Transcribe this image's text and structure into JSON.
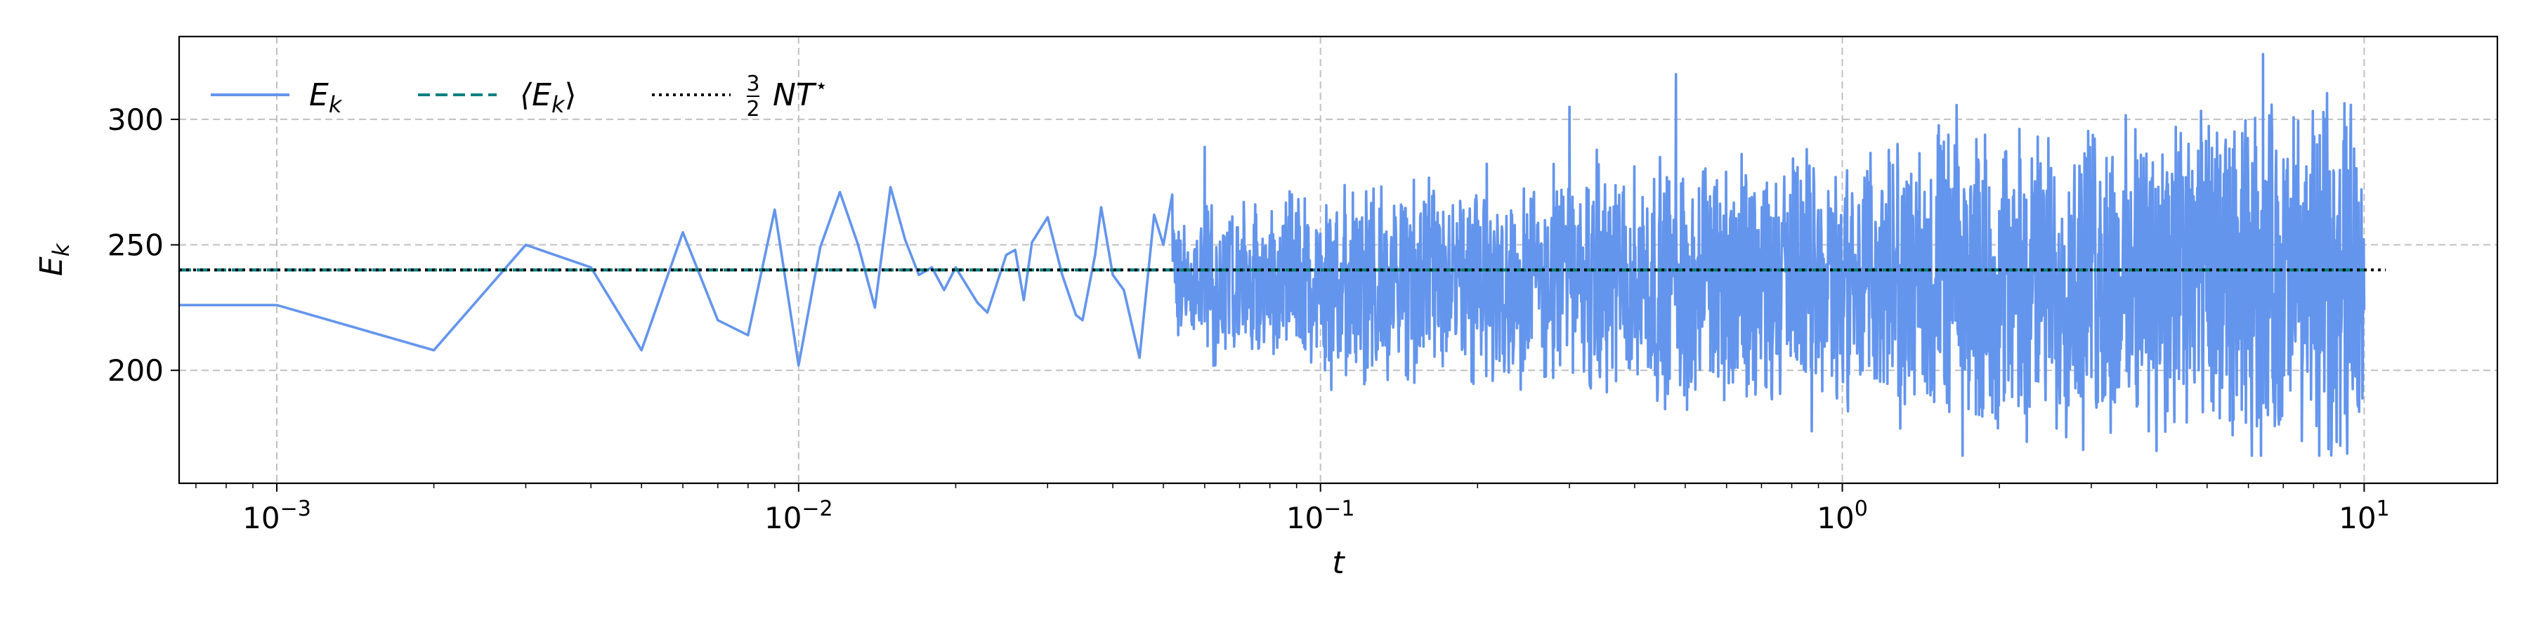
{
  "chart_data": {
    "type": "line",
    "xscale": "log",
    "xlim": [
      0.00065,
      18
    ],
    "ylim": [
      155,
      333
    ],
    "xlabel": "t",
    "ylabel": "E_k",
    "x_ticks": [
      0.001,
      0.01,
      0.1,
      1,
      10
    ],
    "x_tick_labels": [
      {
        "base": "10",
        "exp": "−3"
      },
      {
        "base": "10",
        "exp": "−2"
      },
      {
        "base": "10",
        "exp": "−1"
      },
      {
        "base": "10",
        "exp": "0"
      },
      {
        "base": "10",
        "exp": "1"
      }
    ],
    "y_ticks": [
      200,
      250,
      300
    ],
    "y_tick_labels": [
      "200",
      "250",
      "300"
    ],
    "grid": true,
    "legend_position": "top-left",
    "legend": [
      {
        "label": "E",
        "sub": "k",
        "style": "solid",
        "color": "#6495ED"
      },
      {
        "label": "⟨E",
        "sub": "k",
        "tail": "⟩",
        "style": "dashed",
        "color": "#008080"
      },
      {
        "label": "NT",
        "sup": "⋆",
        "frac": [
          "3",
          "2"
        ],
        "style": "dotted",
        "color": "#000000"
      }
    ],
    "series": [
      {
        "name": "E_k",
        "style": "solid",
        "color": "#6495ED",
        "points": [
          [
            0.0005,
            226
          ],
          [
            0.001,
            226
          ],
          [
            0.002,
            208
          ],
          [
            0.003,
            250
          ],
          [
            0.004,
            241
          ],
          [
            0.005,
            208
          ],
          [
            0.006,
            255
          ],
          [
            0.007,
            220
          ],
          [
            0.008,
            214
          ],
          [
            0.009,
            264
          ],
          [
            0.01,
            202
          ],
          [
            0.011,
            249
          ],
          [
            0.012,
            271
          ],
          [
            0.013,
            250
          ],
          [
            0.014,
            225
          ],
          [
            0.015,
            273
          ],
          [
            0.016,
            252
          ],
          [
            0.017,
            238
          ],
          [
            0.018,
            241
          ],
          [
            0.019,
            232
          ],
          [
            0.02,
            241
          ],
          [
            0.022,
            227
          ],
          [
            0.023,
            223
          ],
          [
            0.025,
            246
          ],
          [
            0.026,
            248
          ],
          [
            0.027,
            228
          ],
          [
            0.028,
            251
          ],
          [
            0.03,
            261
          ],
          [
            0.032,
            238
          ],
          [
            0.034,
            222
          ],
          [
            0.035,
            220
          ],
          [
            0.037,
            246
          ],
          [
            0.038,
            265
          ],
          [
            0.04,
            238
          ],
          [
            0.042,
            232
          ],
          [
            0.045,
            205
          ],
          [
            0.048,
            262
          ],
          [
            0.05,
            250
          ],
          [
            0.052,
            270
          ]
        ],
        "noise_region": {
          "x_start": 0.052,
          "x_end": 10,
          "mean": 236,
          "amplitude_start": 25,
          "amplitude_end": 58,
          "min": 166,
          "max": 326,
          "peaks": [
            [
              0.06,
              289
            ],
            [
              0.3,
              305
            ],
            [
              0.48,
              318
            ],
            [
              1.7,
              166
            ],
            [
              6.4,
              326
            ],
            [
              9.0,
              170
            ]
          ]
        }
      },
      {
        "name": "⟨E_k⟩",
        "style": "dashed",
        "color": "#008080",
        "y": 240,
        "x_range": [
          0.00065,
          10
        ]
      },
      {
        "name": "3/2 N T*",
        "style": "dotted",
        "color": "#000000",
        "y": 240,
        "x_range": [
          0.00065,
          11
        ]
      }
    ]
  }
}
